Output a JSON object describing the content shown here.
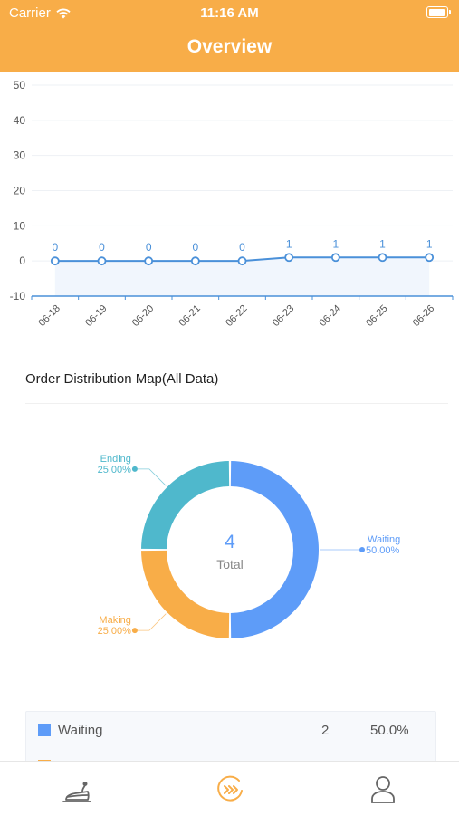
{
  "status_bar": {
    "carrier": "Carrier",
    "time": "11:16 AM"
  },
  "header": {
    "title": "Overview"
  },
  "chart_data": [
    {
      "type": "line",
      "x": [
        "06-18",
        "06-19",
        "06-20",
        "06-21",
        "06-22",
        "06-23",
        "06-24",
        "06-25",
        "06-26"
      ],
      "series": [
        {
          "values": [
            0,
            0,
            0,
            0,
            0,
            1,
            1,
            1,
            1
          ]
        }
      ],
      "yticks": [
        -10,
        0,
        10,
        20,
        30,
        40,
        50
      ],
      "ylim": [
        -10,
        50
      ],
      "grid": true,
      "area_fill": true,
      "data_labels": true,
      "color": "#4A90D9"
    },
    {
      "type": "pie",
      "donut": true,
      "title": "Order Distribution Map(All Data)",
      "center_value": "4",
      "center_label": "Total",
      "slices": [
        {
          "label": "Waiting",
          "value": 2,
          "percent": "50.00%",
          "color": "#5E9CF8"
        },
        {
          "label": "Making",
          "value": 1,
          "percent": "25.00%",
          "color": "#F8AD48"
        },
        {
          "label": "Ending",
          "value": 1,
          "percent": "25.00%",
          "color": "#4FB8CC"
        }
      ]
    }
  ],
  "legend_table": {
    "rows": [
      {
        "label": "Waiting",
        "count": "2",
        "percent": "50.0%",
        "color": "#5E9CF8"
      }
    ],
    "partial_next_color": "#F8AD48"
  },
  "tabbar": {
    "tabs": [
      {
        "icon": "cake-icon",
        "color": "#666666"
      },
      {
        "icon": "arrows-circle-icon",
        "color": "#F8AD48",
        "active": true
      },
      {
        "icon": "user-icon",
        "color": "#666666"
      }
    ]
  }
}
